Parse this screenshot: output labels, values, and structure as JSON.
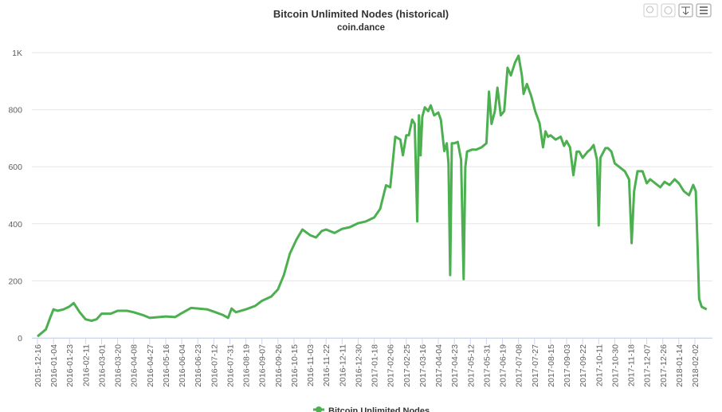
{
  "chart_data": {
    "type": "line",
    "title": "Bitcoin Unlimited Nodes (historical)",
    "subtitle": "coin.dance",
    "series": [
      {
        "name": "Bitcoin Unlimited Nodes",
        "color": "#4caf50",
        "x": [
          "2015-12-16",
          "2015-12-26",
          "2015-12-31",
          "2016-01-04",
          "2016-01-09",
          "2016-01-16",
          "2016-01-23",
          "2016-01-28",
          "2016-02-04",
          "2016-02-11",
          "2016-02-18",
          "2016-02-24",
          "2016-03-01",
          "2016-03-12",
          "2016-03-20",
          "2016-03-31",
          "2016-04-08",
          "2016-04-19",
          "2016-04-27",
          "2016-05-08",
          "2016-05-16",
          "2016-05-27",
          "2016-06-04",
          "2016-06-15",
          "2016-06-23",
          "2016-07-04",
          "2016-07-12",
          "2016-07-23",
          "2016-07-29",
          "2016-08-02",
          "2016-08-07",
          "2016-08-19",
          "2016-08-30",
          "2016-09-07",
          "2016-09-18",
          "2016-09-26",
          "2016-10-03",
          "2016-10-10",
          "2016-10-18",
          "2016-10-25",
          "2016-11-03",
          "2016-11-10",
          "2016-11-17",
          "2016-11-22",
          "2016-12-02",
          "2016-12-11",
          "2016-12-20",
          "2016-12-30",
          "2017-01-08",
          "2017-01-18",
          "2017-01-25",
          "2017-02-01",
          "2017-02-06",
          "2017-02-12",
          "2017-02-18",
          "2017-02-21",
          "2017-02-25",
          "2017-02-28",
          "2017-03-04",
          "2017-03-07",
          "2017-03-10",
          "2017-03-12",
          "2017-03-14",
          "2017-03-16",
          "2017-03-19",
          "2017-03-23",
          "2017-03-26",
          "2017-03-30",
          "2017-04-04",
          "2017-04-07",
          "2017-04-11",
          "2017-04-14",
          "2017-04-16",
          "2017-04-18",
          "2017-04-20",
          "2017-04-23",
          "2017-04-27",
          "2017-05-01",
          "2017-05-04",
          "2017-05-06",
          "2017-05-08",
          "2017-05-14",
          "2017-05-19",
          "2017-05-25",
          "2017-05-31",
          "2017-06-03",
          "2017-06-06",
          "2017-06-10",
          "2017-06-13",
          "2017-06-17",
          "2017-06-21",
          "2017-06-25",
          "2017-06-29",
          "2017-07-04",
          "2017-07-08",
          "2017-07-12",
          "2017-07-14",
          "2017-07-18",
          "2017-07-23",
          "2017-07-28",
          "2017-08-02",
          "2017-08-06",
          "2017-08-09",
          "2017-08-12",
          "2017-08-15",
          "2017-08-21",
          "2017-08-27",
          "2017-08-31",
          "2017-09-03",
          "2017-09-07",
          "2017-09-11",
          "2017-09-15",
          "2017-09-18",
          "2017-09-22",
          "2017-09-28",
          "2017-10-01",
          "2017-10-05",
          "2017-10-09",
          "2017-10-11",
          "2017-10-13",
          "2017-10-19",
          "2017-10-22",
          "2017-10-26",
          "2017-10-30",
          "2017-11-05",
          "2017-11-11",
          "2017-11-16",
          "2017-11-19",
          "2017-11-22",
          "2017-11-26",
          "2017-12-02",
          "2017-12-07",
          "2017-12-11",
          "2017-12-17",
          "2017-12-23",
          "2017-12-28",
          "2018-01-03",
          "2018-01-09",
          "2018-01-14",
          "2018-01-20",
          "2018-01-26",
          "2018-01-31",
          "2018-02-03",
          "2018-02-05",
          "2018-02-07",
          "2018-02-10",
          "2018-02-16"
        ],
        "values": [
          5,
          30,
          70,
          100,
          95,
          100,
          110,
          122,
          90,
          65,
          60,
          65,
          85,
          85,
          95,
          95,
          90,
          80,
          70,
          73,
          75,
          73,
          87,
          105,
          103,
          100,
          92,
          80,
          70,
          103,
          90,
          100,
          112,
          130,
          145,
          170,
          220,
          295,
          345,
          380,
          360,
          352,
          375,
          380,
          368,
          382,
          388,
          402,
          408,
          422,
          452,
          535,
          528,
          705,
          695,
          640,
          710,
          710,
          765,
          750,
          408,
          780,
          640,
          775,
          808,
          795,
          815,
          780,
          790,
          765,
          655,
          682,
          612,
          220,
          682,
          682,
          687,
          625,
          206,
          598,
          653,
          660,
          660,
          668,
          682,
          863,
          750,
          795,
          877,
          780,
          795,
          947,
          920,
          966,
          989,
          920,
          855,
          890,
          849,
          793,
          752,
          668,
          724,
          705,
          710,
          695,
          705,
          673,
          690,
          668,
          570,
          653,
          653,
          631,
          653,
          660,
          676,
          625,
          394,
          631,
          665,
          665,
          653,
          612,
          598,
          584,
          556,
          332,
          514,
          584,
          584,
          542,
          556,
          542,
          528,
          547,
          536,
          556,
          542,
          514,
          500,
          536,
          514,
          332,
          137,
          109,
          100
        ]
      }
    ],
    "xlim": [
      "2015-12-16",
      "2018-02-19"
    ],
    "xticks": [
      "2015-12-16",
      "2016-01-04",
      "2016-01-23",
      "2016-02-11",
      "2016-03-01",
      "2016-03-20",
      "2016-04-08",
      "2016-04-27",
      "2016-05-16",
      "2016-06-04",
      "2016-06-23",
      "2016-07-12",
      "2016-07-31",
      "2016-08-19",
      "2016-09-07",
      "2016-09-26",
      "2016-10-15",
      "2016-11-03",
      "2016-11-22",
      "2016-12-11",
      "2016-12-30",
      "2017-01-18",
      "2017-02-06",
      "2017-02-25",
      "2017-03-16",
      "2017-04-04",
      "2017-04-23",
      "2017-05-12",
      "2017-05-31",
      "2017-06-19",
      "2017-07-08",
      "2017-07-27",
      "2017-08-15",
      "2017-09-03",
      "2017-09-22",
      "2017-10-11",
      "2017-10-30",
      "2017-11-18",
      "2017-12-07",
      "2017-12-26",
      "2018-01-14",
      "2018-02-02"
    ],
    "ylim": [
      0,
      1000
    ],
    "yticks": [
      0,
      200,
      400,
      600,
      800,
      {
        "value": 1000,
        "label": "1K"
      }
    ],
    "grid": true,
    "legend": "bottom"
  }
}
